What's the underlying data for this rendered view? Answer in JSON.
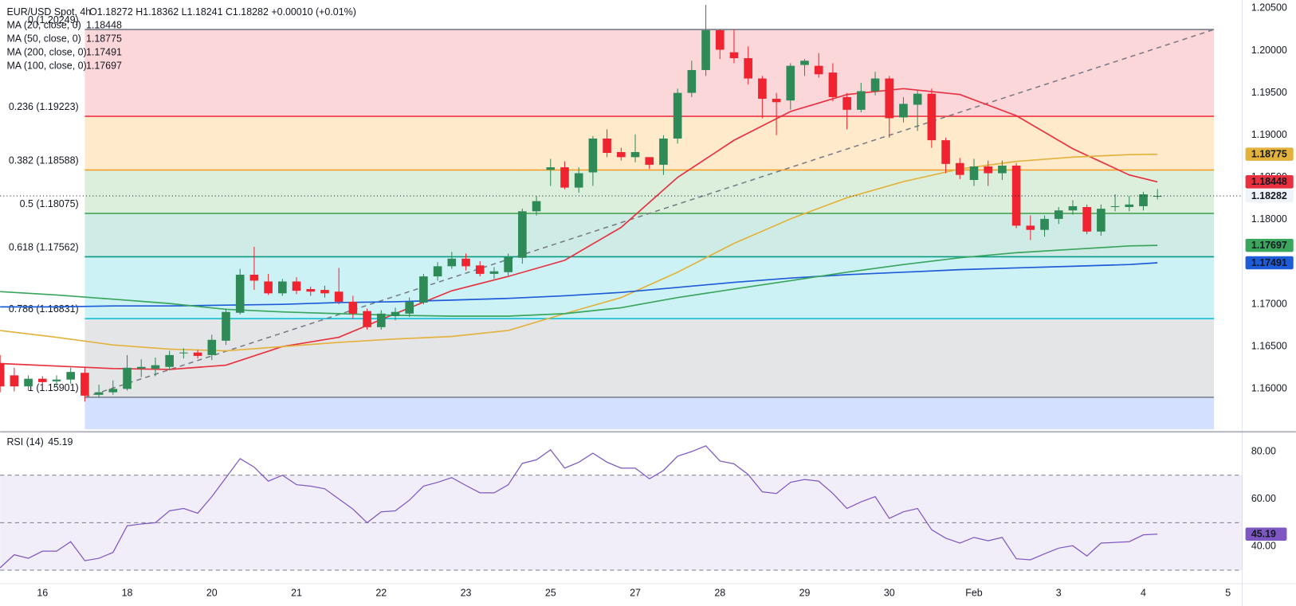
{
  "chart_data": {
    "type": "candlestick",
    "title": "EUR/USD Spot, 4h",
    "ohlc_text": "O1.18272 H1.18362 L1.18241 C1.18282 +0.00010 (+0.01%)",
    "up_color": "#2e8a57",
    "down_color": "#ef2430",
    "xlim": [
      0,
      88
    ],
    "xticks": [
      {
        "value": 3,
        "label": "16"
      },
      {
        "value": 9,
        "label": "18"
      },
      {
        "value": 15,
        "label": "20"
      },
      {
        "value": 21,
        "label": "21"
      },
      {
        "value": 27,
        "label": "22"
      },
      {
        "value": 33,
        "label": "23"
      },
      {
        "value": 39,
        "label": "25"
      },
      {
        "value": 45,
        "label": "27"
      },
      {
        "value": 51,
        "label": "28"
      },
      {
        "value": 57,
        "label": "29"
      },
      {
        "value": 63,
        "label": "30"
      },
      {
        "value": 69,
        "label": "Feb"
      },
      {
        "value": 75,
        "label": "3"
      },
      {
        "value": 81,
        "label": "4"
      },
      {
        "value": 87,
        "label": "5"
      }
    ],
    "ylim": [
      1.15522,
      1.20598
    ],
    "yticks": [
      {
        "value": 1.205,
        "label": "1.20500"
      },
      {
        "value": 1.2,
        "label": "1.20000"
      },
      {
        "value": 1.195,
        "label": "1.19500"
      },
      {
        "value": 1.19,
        "label": "1.19000"
      },
      {
        "value": 1.185,
        "label": "1.18500"
      },
      {
        "value": 1.18,
        "label": "1.18000"
      },
      {
        "value": 1.175,
        "label": "1.17500"
      },
      {
        "value": 1.17,
        "label": "1.17000"
      },
      {
        "value": 1.165,
        "label": "1.16500"
      },
      {
        "value": 1.16,
        "label": "1.16000"
      }
    ],
    "open": [
      1.163,
      1.1616,
      1.1603,
      1.1612,
      1.1609,
      1.1611,
      1.1619,
      1.1593,
      1.1596,
      1.16,
      1.1624,
      1.1624,
      1.1626,
      1.1642,
      1.1643,
      1.164,
      1.1657,
      1.169,
      1.1735,
      1.1727,
      1.1713,
      1.1727,
      1.1718,
      1.1717,
      1.1715,
      1.1703,
      1.1692,
      1.1673,
      1.1686,
      1.1689,
      1.1702,
      1.1733,
      1.1745,
      1.1754,
      1.1746,
      1.1736,
      1.1738,
      1.1755,
      1.181,
      1.1859,
      1.1862,
      1.1838,
      1.1856,
      1.1896,
      1.188,
      1.1874,
      1.1874,
      1.1865,
      1.1896,
      1.195,
      1.1977,
      1.2024,
      1.1998,
      1.1991,
      1.1967,
      1.1943,
      1.1941,
      1.1983,
      1.1982,
      1.1974,
      1.1945,
      1.193,
      1.1952,
      1.1967,
      1.1921,
      1.1936,
      1.1949,
      1.1894,
      1.1867,
      1.1847,
      1.1863,
      1.1855,
      1.1864,
      1.1793,
      1.1788,
      1.1801,
      1.1811,
      1.1815,
      1.1786,
      1.1815,
      1.1815,
      1.1816,
      1.18272
    ],
    "high": [
      1.164,
      1.1625,
      1.1616,
      1.1615,
      1.1616,
      1.1625,
      1.1626,
      1.1605,
      1.161,
      1.164,
      1.1635,
      1.1637,
      1.1645,
      1.1648,
      1.1646,
      1.1664,
      1.1695,
      1.1742,
      1.1768,
      1.1736,
      1.173,
      1.1732,
      1.1721,
      1.1722,
      1.1743,
      1.171,
      1.1695,
      1.1693,
      1.1696,
      1.1708,
      1.1736,
      1.175,
      1.1762,
      1.176,
      1.1751,
      1.1744,
      1.176,
      1.1813,
      1.1828,
      1.1872,
      1.1869,
      1.1862,
      1.1899,
      1.1907,
      1.1885,
      1.1901,
      1.1874,
      1.19,
      1.1955,
      1.1988,
      1.2054,
      1.2025,
      1.2025,
      1.2005,
      1.197,
      1.195,
      1.1985,
      1.199,
      1.1997,
      1.1985,
      1.195,
      1.1962,
      1.1975,
      1.197,
      1.1945,
      1.1953,
      1.1955,
      1.1897,
      1.1873,
      1.1872,
      1.187,
      1.187,
      1.1867,
      1.1805,
      1.1805,
      1.1815,
      1.1823,
      1.1818,
      1.1818,
      1.183,
      1.1828,
      1.1833,
      1.18362
    ],
    "low": [
      1.1596,
      1.1597,
      1.1598,
      1.1604,
      1.1603,
      1.1606,
      1.1585,
      1.159,
      1.1593,
      1.1598,
      1.1614,
      1.1615,
      1.1622,
      1.1636,
      1.1636,
      1.1634,
      1.1652,
      1.1688,
      1.1717,
      1.1711,
      1.171,
      1.1712,
      1.171,
      1.1708,
      1.17,
      1.1683,
      1.167,
      1.167,
      1.1681,
      1.1685,
      1.17,
      1.1728,
      1.1742,
      1.174,
      1.1733,
      1.173,
      1.1734,
      1.1748,
      1.1805,
      1.184,
      1.1836,
      1.1832,
      1.184,
      1.1874,
      1.187,
      1.1868,
      1.186,
      1.1853,
      1.189,
      1.1945,
      1.197,
      1.199,
      1.1985,
      1.196,
      1.192,
      1.19,
      1.193,
      1.197,
      1.1968,
      1.194,
      1.1907,
      1.1927,
      1.1947,
      1.1897,
      1.1915,
      1.1905,
      1.1885,
      1.1855,
      1.1848,
      1.184,
      1.184,
      1.1847,
      1.179,
      1.1776,
      1.178,
      1.1795,
      1.1806,
      1.1783,
      1.1781,
      1.181,
      1.181,
      1.1811,
      1.18241
    ],
    "close": [
      1.1603,
      1.1603,
      1.1612,
      1.1608,
      1.1611,
      1.162,
      1.1592,
      1.1596,
      1.16,
      1.1625,
      1.1626,
      1.1628,
      1.164,
      1.1643,
      1.1639,
      1.1658,
      1.1691,
      1.1735,
      1.1728,
      1.1713,
      1.1727,
      1.1716,
      1.1715,
      1.1713,
      1.1703,
      1.1689,
      1.1673,
      1.1689,
      1.1691,
      1.1703,
      1.1733,
      1.1745,
      1.1754,
      1.1745,
      1.1736,
      1.1739,
      1.1756,
      1.181,
      1.1822,
      1.1862,
      1.1838,
      1.1855,
      1.1896,
      1.1879,
      1.1874,
      1.188,
      1.1865,
      1.1896,
      1.195,
      1.1977,
      1.2024,
      1.2001,
      1.1991,
      1.1967,
      1.1943,
      1.1939,
      1.1982,
      1.1988,
      1.1972,
      1.1945,
      1.193,
      1.1952,
      1.1967,
      1.192,
      1.1937,
      1.1949,
      1.1894,
      1.1866,
      1.1853,
      1.1863,
      1.1855,
      1.1864,
      1.1793,
      1.1788,
      1.1801,
      1.1811,
      1.1816,
      1.1786,
      1.1813,
      1.1816,
      1.1818,
      1.183,
      1.18282
    ],
    "ma": {
      "x": [
        0,
        4,
        8,
        12,
        16,
        20,
        24,
        28,
        32,
        36,
        40,
        44,
        48,
        52,
        56,
        60,
        64,
        68,
        72,
        76,
        80,
        82
      ],
      "series": [
        {
          "name": "MA (20, close, 0)",
          "color": "#e8303f",
          "values": [
            1.163,
            1.1627,
            1.1624,
            1.1623,
            1.1628,
            1.165,
            1.1661,
            1.1689,
            1.1716,
            1.1733,
            1.1752,
            1.1791,
            1.185,
            1.1894,
            1.1928,
            1.1948,
            1.1955,
            1.1948,
            1.1923,
            1.1884,
            1.1853,
            1.18448
          ]
        },
        {
          "name": "MA (50, close, 0)",
          "color": "#e3b23c",
          "values": [
            1.1669,
            1.1661,
            1.1652,
            1.1647,
            1.1645,
            1.165,
            1.1655,
            1.1659,
            1.1662,
            1.1669,
            1.1689,
            1.1708,
            1.1738,
            1.1772,
            1.1801,
            1.1826,
            1.1845,
            1.186,
            1.1869,
            1.1874,
            1.1877,
            1.18775
          ]
        },
        {
          "name": "MA (200, close, 0)",
          "color": "#1e5bd8",
          "values": [
            1.1697,
            1.1697,
            1.1698,
            1.1698,
            1.1699,
            1.17,
            1.1702,
            1.1703,
            1.1705,
            1.1707,
            1.171,
            1.1714,
            1.172,
            1.1726,
            1.1731,
            1.1735,
            1.1738,
            1.1741,
            1.1743,
            1.1745,
            1.1747,
            1.17491
          ]
        },
        {
          "name": "MA (100, close, 0)",
          "color": "#3aa55c",
          "values": [
            1.1715,
            1.1711,
            1.1706,
            1.1701,
            1.1694,
            1.1691,
            1.1689,
            1.1687,
            1.1686,
            1.1686,
            1.1689,
            1.1696,
            1.1708,
            1.1718,
            1.1728,
            1.1738,
            1.1747,
            1.1755,
            1.1761,
            1.1765,
            1.1769,
            1.17697
          ]
        }
      ]
    },
    "fib": {
      "start_x": 6,
      "end_x": 86,
      "levels": [
        {
          "label": "0 (1.20249)",
          "value": 1.20249,
          "color": "#787b86",
          "fill": "rgba(242,54,69,0.2)"
        },
        {
          "label": "0.236 (1.19223)",
          "value": 1.19223,
          "color": "#f23645",
          "fill": "rgba(255,152,0,0.2)"
        },
        {
          "label": "0.382 (1.18588)",
          "value": 1.18588,
          "color": "#f59a1b",
          "fill": "rgba(76,175,80,0.2)"
        },
        {
          "label": "0.5 (1.18075)",
          "value": 1.18075,
          "color": "#3d9e48",
          "fill": "rgba(8,153,129,0.2)"
        },
        {
          "label": "0.618 (1.17562)",
          "value": 1.17562,
          "color": "#089981",
          "fill": "rgba(0,188,212,0.2)"
        },
        {
          "label": "0.786 (1.16831)",
          "value": 1.16831,
          "color": "#00bcd4",
          "fill": "rgba(120,123,134,0.2)"
        },
        {
          "label": "1 (1.15901)",
          "value": 1.15901,
          "color": "#787b86",
          "fill": "rgba(41,98,255,0.2)"
        }
      ]
    },
    "rsi": {
      "title": "RSI (14)",
      "color": "#7e57c2",
      "ylim": [
        25,
        87.6
      ],
      "yticks": [
        {
          "value": 80,
          "label": "80.00"
        },
        {
          "value": 60,
          "label": "60.00"
        },
        {
          "value": 40,
          "label": "40.00"
        }
      ],
      "levels": [
        70,
        50,
        30
      ],
      "values": [
        31,
        36.5,
        35,
        38,
        38,
        42,
        34,
        35,
        37.5,
        48.7,
        49.5,
        50,
        55,
        56,
        54,
        61,
        69,
        77,
        73.4,
        67.5,
        70,
        66,
        65.4,
        64.3,
        60,
        55.7,
        50,
        54.6,
        55,
        59.5,
        65.4,
        67,
        69,
        65.7,
        62.6,
        62.6,
        66,
        75,
        76.5,
        80.7,
        73,
        75.5,
        79.3,
        75.5,
        73,
        73,
        68.5,
        72,
        78,
        80,
        82.4,
        76,
        74.8,
        70.3,
        63,
        62.3,
        67,
        68.2,
        67.5,
        62.3,
        56,
        58.8,
        61,
        51.8,
        54.6,
        56,
        47,
        43.5,
        41.4,
        43.8,
        42.4,
        43.8,
        34.8,
        34.4,
        36.9,
        39.3,
        40.3,
        36,
        41.4,
        41.7,
        42,
        44.9,
        45.19
      ]
    }
  }
}
